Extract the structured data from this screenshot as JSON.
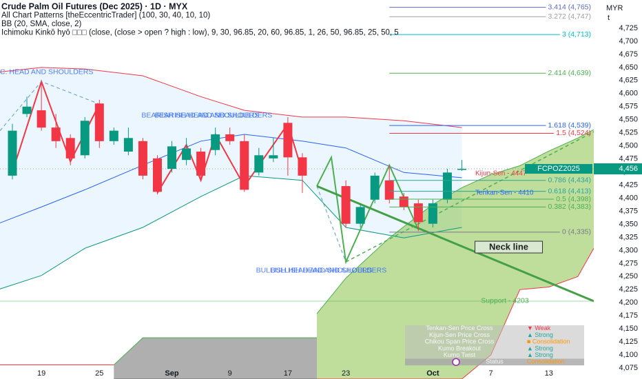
{
  "chart_data": {
    "type": "candlestick",
    "title": "Crude Palm Oil Futures (Dec 2025) · 1D · MYX",
    "indicators": [
      "All Chart Patterns [theEccentricTrader] (100, 30, 40, 10, 10)",
      "BB (20, SMA, close, 2)",
      "Ichimoku Kinkō hyō □□□ (close, (close > open ? high : low), 9, 30, 96.85, 20, 60, 96.85, 1, 26, 50, 96.85, 25, 50, 5"
    ],
    "currency": "MYR",
    "currency_note": "t",
    "up_color": "#089981",
    "down_color": "#f23645",
    "x": [
      0,
      1,
      2,
      3,
      4,
      5,
      6,
      7,
      8,
      9,
      10,
      11,
      12,
      13,
      14,
      15,
      16,
      17,
      18,
      19,
      20,
      23,
      24,
      25,
      26,
      27,
      28,
      29,
      30,
      31
    ],
    "open": [
      4443,
      4561,
      4568,
      4535,
      4515,
      4482,
      4581,
      4509,
      4489,
      4509,
      4476,
      4456,
      4473,
      4489,
      4492,
      4522,
      4509,
      4449,
      4476,
      4544,
      4478,
      4423,
      4351,
      4397,
      4434,
      4403,
      4390,
      4351,
      4397,
      4454
    ],
    "high": [
      4542,
      4594,
      4623,
      4561,
      4522,
      4555,
      4588,
      4535,
      4535,
      4515,
      4482,
      4509,
      4515,
      4496,
      4535,
      4535,
      4522,
      4496,
      4515,
      4555,
      4486,
      4434,
      4390,
      4449,
      4463,
      4410,
      4397,
      4397,
      4456,
      4473
    ],
    "low": [
      4436,
      4555,
      4529,
      4496,
      4463,
      4476,
      4496,
      4502,
      4482,
      4436,
      4407,
      4449,
      4463,
      4434,
      4482,
      4502,
      4412,
      4443,
      4469,
      4443,
      4410,
      4344,
      4344,
      4390,
      4390,
      4377,
      4337,
      4344,
      4390,
      4452
    ],
    "close": [
      4529,
      4575,
      4535,
      4509,
      4476,
      4548,
      4509,
      4529,
      4515,
      4443,
      4412,
      4499,
      4495,
      4443,
      4522,
      4509,
      4416,
      4482,
      4482,
      4478,
      4443,
      4351,
      4383,
      4443,
      4397,
      4383,
      4354,
      4390,
      4449,
      4456
    ],
    "xlim": [
      -0.855,
      40.1
    ],
    "xticks": [
      {
        "value": 2,
        "label": "19"
      },
      {
        "value": 6,
        "label": "25"
      },
      {
        "value": 11,
        "label": "Sep"
      },
      {
        "value": 15,
        "label": "9"
      },
      {
        "value": 19,
        "label": "17"
      },
      {
        "value": 23,
        "label": "23"
      },
      {
        "value": 29,
        "label": "Oct"
      },
      {
        "value": 33,
        "label": "7"
      },
      {
        "value": 37,
        "label": "13"
      }
    ],
    "ylim": [
      4054,
      4779
    ],
    "yticks": [
      {
        "value": 4075,
        "label": "4,075"
      },
      {
        "value": 4100,
        "label": "4,100"
      },
      {
        "value": 4125,
        "label": "4,125"
      },
      {
        "value": 4150,
        "label": "4,150"
      },
      {
        "value": 4175,
        "label": "4,175"
      },
      {
        "value": 4200,
        "label": "4,200"
      },
      {
        "value": 4225,
        "label": "4,225"
      },
      {
        "value": 4250,
        "label": "4,250"
      },
      {
        "value": 4275,
        "label": "4,275"
      },
      {
        "value": 4300,
        "label": "4,300"
      },
      {
        "value": 4325,
        "label": "4,325"
      },
      {
        "value": 4350,
        "label": "4,350"
      },
      {
        "value": 4375,
        "label": "4,375"
      },
      {
        "value": 4400,
        "label": "4,400"
      },
      {
        "value": 4425,
        "label": "4,425"
      },
      {
        "value": 4450,
        "label": "4,450"
      },
      {
        "value": 4475,
        "label": "4,475"
      },
      {
        "value": 4500,
        "label": "4,500"
      },
      {
        "value": 4525,
        "label": "4,525"
      },
      {
        "value": 4550,
        "label": "4,550"
      },
      {
        "value": 4575,
        "label": "4,575"
      },
      {
        "value": 4600,
        "label": "4,600"
      },
      {
        "value": 4625,
        "label": "4,625"
      },
      {
        "value": 4650,
        "label": "4,650"
      },
      {
        "value": 4675,
        "label": "4,675"
      },
      {
        "value": 4700,
        "label": "4,700"
      },
      {
        "value": 4725,
        "label": "4,725"
      }
    ],
    "bollinger": {
      "x": [
        -1,
        2,
        5,
        9,
        13,
        16,
        20,
        23,
        27,
        31
      ],
      "upper": [
        4641,
        4650,
        4647,
        4634,
        4594,
        4568,
        4555,
        4555,
        4548,
        4535
      ],
      "basis": [
        4351,
        4383,
        4416,
        4463,
        4509,
        4522,
        4509,
        4496,
        4449,
        4439
      ],
      "lower": [
        4225,
        4252,
        4304,
        4344,
        4403,
        4443,
        4434,
        4344,
        4324,
        4344
      ],
      "upper_color": "#f23645",
      "basis_color": "#2962ff",
      "lower_color": "#089981",
      "fill": "#2196f3"
    },
    "kumo": [
      {
        "color": "#6d6d6d",
        "edge_upper": "#4caf50",
        "edge_lower": "#6d6d6d",
        "x": [
          7,
          9,
          21
        ],
        "upper": [
          4081,
          4133,
          4133
        ],
        "lower": [
          4054,
          4054,
          4054
        ]
      },
      {
        "color": "#8bc34a",
        "edge_upper": "#4caf50",
        "edge_lower": "#f23645",
        "x": [
          21,
          23,
          26,
          29,
          31,
          33,
          35,
          37,
          39,
          40.1
        ],
        "upper": [
          4179,
          4247,
          4324,
          4388,
          4420,
          4445,
          4462,
          4490,
          4515,
          4531
        ],
        "lower": [
          4054,
          4054,
          4054,
          4054,
          4054,
          4100,
          4225,
          4230,
          4250,
          4304
        ]
      }
    ],
    "pattern_lines": [
      {
        "color": "#f23645",
        "width": 2,
        "dashed": false,
        "x": [
          0,
          2,
          4,
          6
        ],
        "values": [
          4450,
          4623,
          4470,
          4580
        ]
      },
      {
        "color": "#f23645",
        "width": 2,
        "dashed": false,
        "x": [
          10,
          12,
          13,
          14,
          16,
          19,
          20
        ],
        "values": [
          4410,
          4502,
          4434,
          4522,
          4423,
          4542,
          4450
        ]
      },
      {
        "color": "#5b9bd5",
        "width": 1,
        "dashed": true,
        "x": [
          -0.855,
          2,
          6
        ],
        "values": [
          4529,
          4623,
          4580
        ]
      },
      {
        "color": "#5b9bd5",
        "width": 1,
        "dashed": true,
        "x": [
          21,
          23
        ],
        "values": [
          4423,
          4278
        ]
      },
      {
        "color": "#4caf50",
        "width": 2,
        "dashed": false,
        "x": [
          21,
          22,
          23,
          26,
          28
        ],
        "values": [
          4423,
          4478,
          4278,
          4463,
          4340
        ]
      },
      {
        "color": "#43a047",
        "width": 3,
        "dashed": false,
        "x": [
          21,
          40.1
        ],
        "values": [
          4423,
          4203
        ]
      },
      {
        "color": "#4caf50",
        "width": 1.5,
        "dashed": true,
        "x": [
          23,
          40.1
        ],
        "values": [
          4278,
          4527
        ]
      },
      {
        "color": "#f23645",
        "width": 1,
        "dashed": false,
        "x": [
          -0.855,
          7
        ],
        "values": [
          4081,
          4081
        ]
      }
    ],
    "levels_start": 26,
    "levels": [
      {
        "value": 4765,
        "label": "3.414 (4,765)",
        "color": "#5c6bc0"
      },
      {
        "value": 4747,
        "label": "3.272 (4,747)",
        "color": "#9e9e9e"
      },
      {
        "value": 4713,
        "label": "3 (4,713)",
        "color": "#00bcd4"
      },
      {
        "value": 4639,
        "label": "2.414 (4,639)",
        "color": "#4caf50"
      },
      {
        "value": 4539,
        "label": "1.618 (4,539)",
        "color": "#2962ff"
      },
      {
        "value": 4524,
        "label": "1.5 (4,524)",
        "color": "#f23645"
      },
      {
        "value": 4434,
        "label": "0.786 (4,434)",
        "color": "#26a69a"
      },
      {
        "value": 4413,
        "label": "0.618 (4,413)",
        "color": "#26a69a"
      },
      {
        "value": 4398,
        "label": "0.5 (4,398)",
        "color": "#4caf50"
      },
      {
        "value": 4383,
        "label": "0.382 (4,383)",
        "color": "#4caf50"
      },
      {
        "value": 4335,
        "label": "0 (4,335)",
        "color": "#787b86"
      }
    ],
    "support": {
      "value": 4203,
      "label": "Support - 4203",
      "color": "#4caf50"
    },
    "ichimoku_labels": [
      {
        "value": 4447,
        "label": "Kijun-Sen - 4447",
        "color": "#f23645"
      },
      {
        "value": 4410,
        "label": "Tenkan-Sen - 4410",
        "color": "#2962ff"
      }
    ],
    "pattern_labels": [
      {
        "text": "C. HEAD AND SHOULDERS",
        "x": -0.855,
        "value": 4641,
        "color": "#2962ff"
      },
      {
        "text": "BEARISH HEAD AND SHOULDERS",
        "x": 8.9,
        "value": 4558,
        "color": "#2962ff"
      },
      {
        "text": "BEARISH HEAD AND SHOULDERS",
        "x": 9.8,
        "value": 4558,
        "color": "#2962ff"
      },
      {
        "text": "BULLISH HEAD AND SHOULDERS",
        "x": 16.8,
        "value": 4261,
        "color": "#2962ff"
      },
      {
        "text": "BULLISH HEAD AND SHOULDERS",
        "x": 17.8,
        "value": 4261,
        "color": "#2962ff"
      }
    ],
    "neckline_label": {
      "text": "Neck line",
      "x": 32,
      "value": 4307
    },
    "last_price": {
      "value": 4456,
      "label": "4,456",
      "ticker": "FCPOZ2025",
      "color": "#089981"
    },
    "signals": [
      {
        "label": "Tenkan-Sen Price Cross",
        "status": "▼ Weak",
        "color": "#f23645"
      },
      {
        "label": "Kijun-Sen Price Cross",
        "status": "▲ Strong",
        "color": "#26a69a"
      },
      {
        "label": "Chikou Span Price Cross",
        "status": "■ Consolidation",
        "color": "#ff9800"
      },
      {
        "label": "Kumo Breakout",
        "status": "▲ Strong",
        "color": "#26a69a"
      },
      {
        "label": "Kumo Twist",
        "status": "▲ Strong",
        "color": "#26a69a"
      },
      {
        "label": "Status",
        "status": "Consolidation",
        "color": "#ff9800"
      }
    ]
  }
}
